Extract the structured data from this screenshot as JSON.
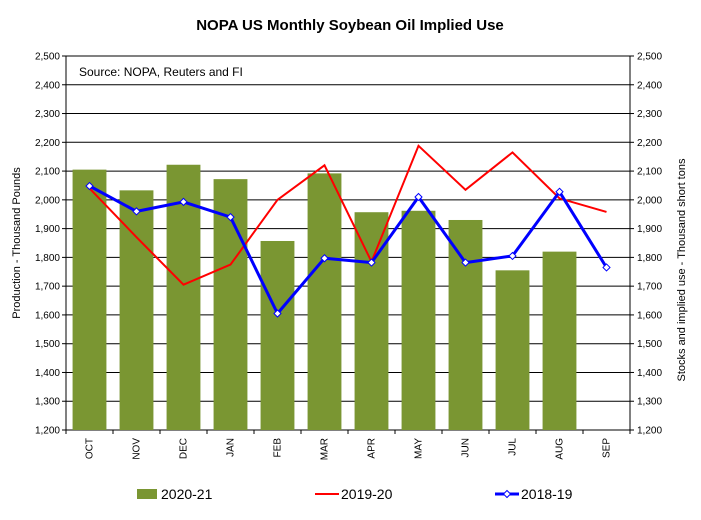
{
  "chart_data": {
    "type": "bar",
    "title": "NOPA US Monthly Soybean Oil Implied Use",
    "source": "Source: NOPA, Reuters and FI",
    "categories": [
      "OCT",
      "NOV",
      "DEC",
      "JAN",
      "FEB",
      "MAR",
      "APR",
      "MAY",
      "JUN",
      "JUL",
      "AUG",
      "SEP"
    ],
    "ylabel_left": "Production - Thousand Pounds",
    "ylabel_right": "Stocks and implied use - Thousand short tons",
    "ylim": [
      1200,
      2500
    ],
    "yticks": [
      1200,
      1300,
      1400,
      1500,
      1600,
      1700,
      1800,
      1900,
      2000,
      2100,
      2200,
      2300,
      2400,
      2500
    ],
    "ytick_labels": [
      "1,200",
      "1,300",
      "1,400",
      "1,500",
      "1,600",
      "1,700",
      "1,800",
      "1,900",
      "2,000",
      "2,100",
      "2,200",
      "2,300",
      "2,400",
      "2,500"
    ],
    "series": [
      {
        "name": "2020-21",
        "kind": "bar",
        "color": "#7a9632",
        "values": [
          2105,
          2033,
          2122,
          2072,
          1857,
          2092,
          1957,
          1962,
          1930,
          1755,
          1820,
          null
        ]
      },
      {
        "name": "2019-20",
        "kind": "line",
        "color": "#ff0000",
        "values": [
          2040,
          1870,
          1705,
          1775,
          2000,
          2120,
          1785,
          2188,
          2035,
          2165,
          2005,
          1958
        ]
      },
      {
        "name": "2018-19",
        "kind": "line",
        "marker": "diamond",
        "color": "#0000ff",
        "values": [
          2048,
          1960,
          1993,
          1940,
          1605,
          1797,
          1782,
          2010,
          1782,
          1805,
          2028,
          1765
        ]
      }
    ],
    "grid": "horizontal",
    "legend_position": "bottom"
  }
}
